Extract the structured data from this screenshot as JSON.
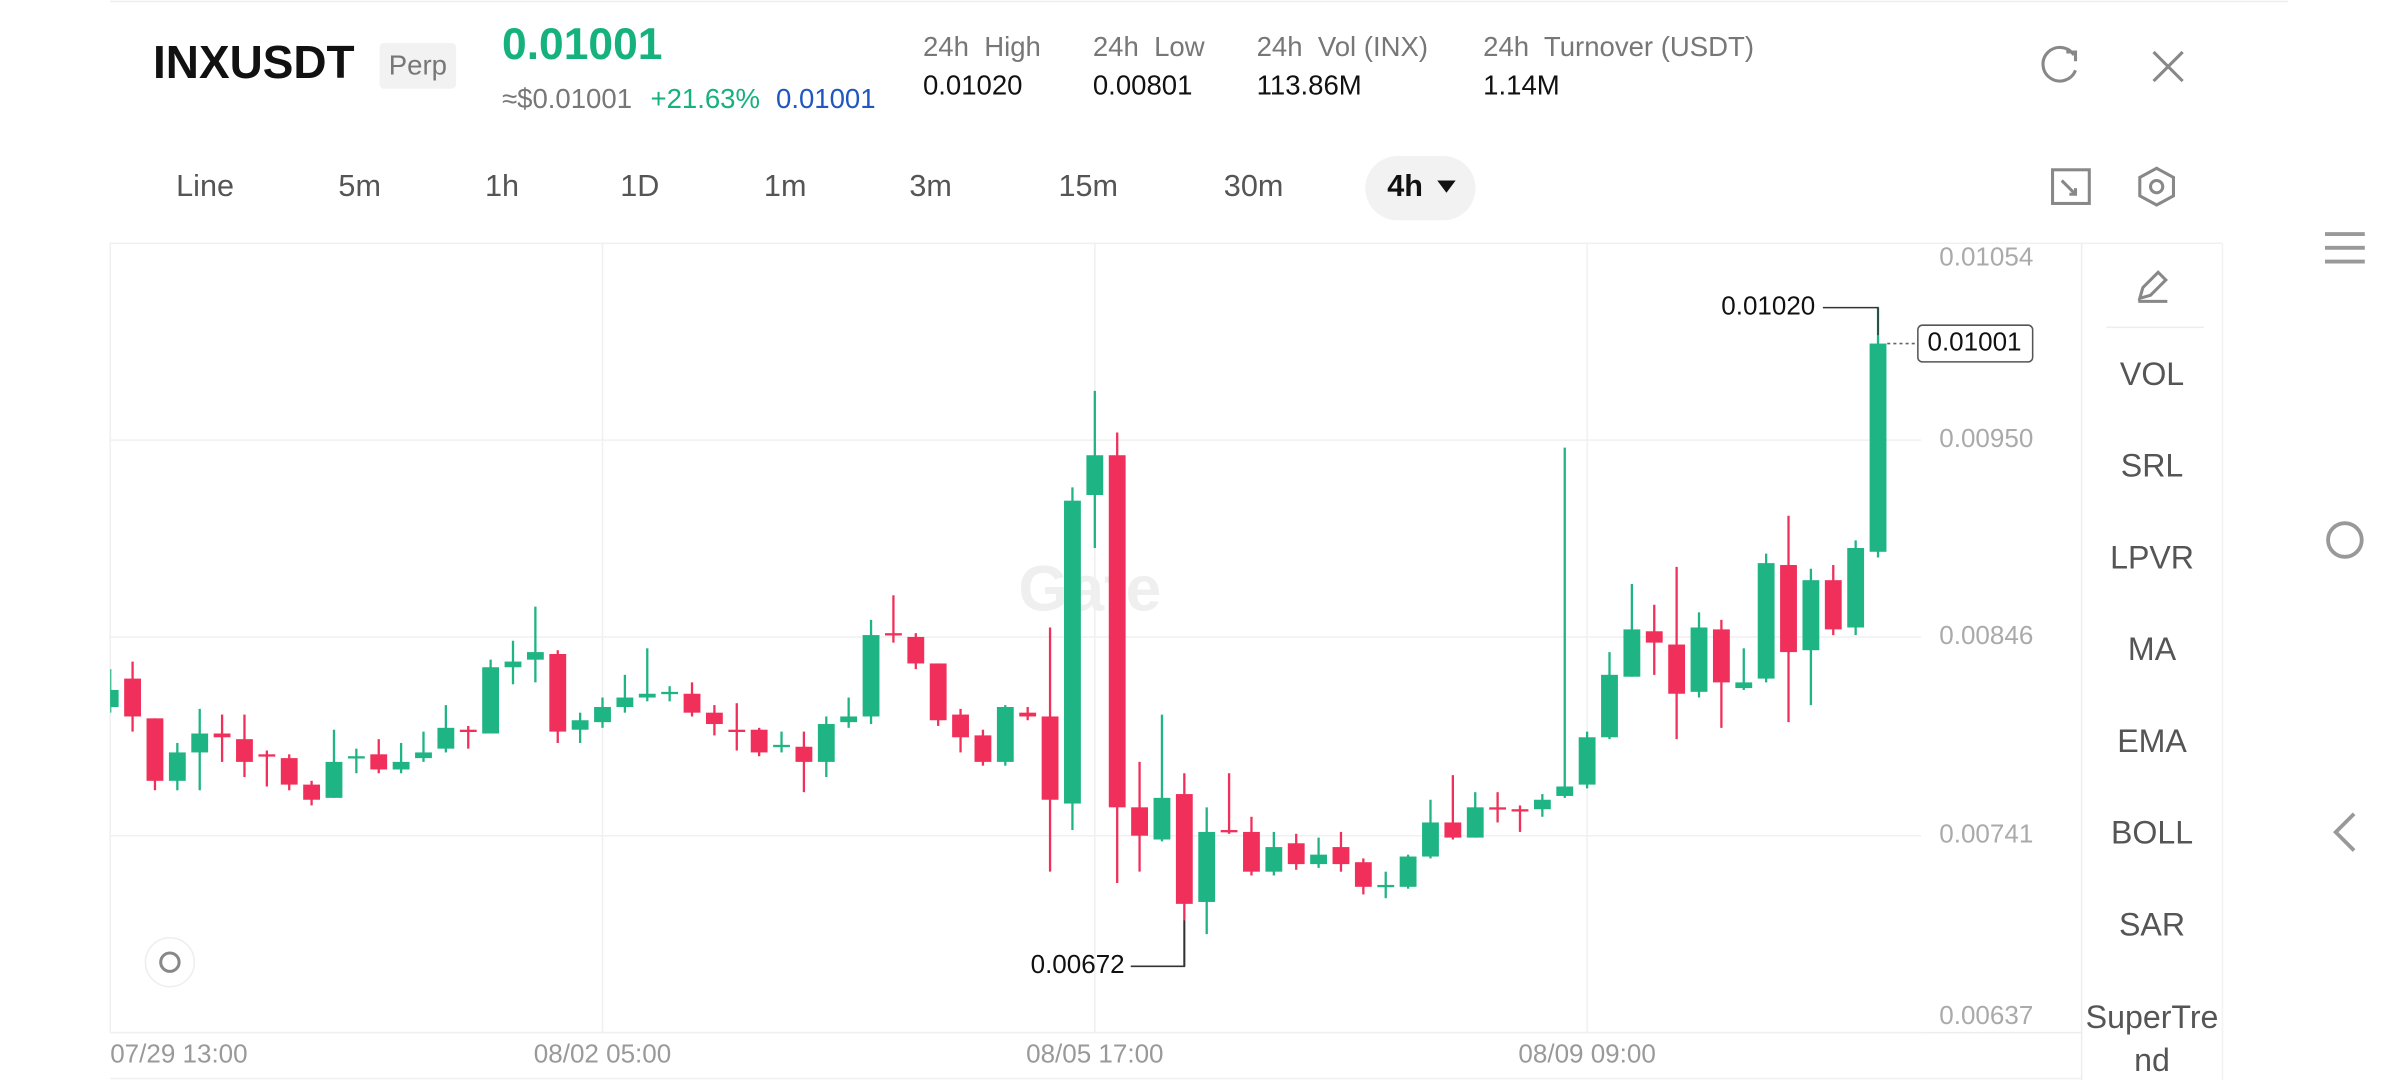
{
  "header": {
    "symbol": "INXUSDT",
    "badge": "Perp",
    "price": "0.01001",
    "usd_price": "≈$0.01001",
    "change": "+21.63%",
    "mark_price": "0.01001"
  },
  "stats": [
    {
      "label": "24h  High",
      "value": "0.01020"
    },
    {
      "label": "24h  Low",
      "value": "0.00801"
    },
    {
      "label": "24h  Vol (INX)",
      "value": "113.86M"
    },
    {
      "label": "24h  Turnover (USDT)",
      "value": "1.14M"
    }
  ],
  "intervals": [
    "Line",
    "5m",
    "1h",
    "1D",
    "1m",
    "3m",
    "15m",
    "30m",
    "4h"
  ],
  "indicators": [
    "VOL",
    "SRL",
    "LPVR",
    "MA",
    "EMA",
    "BOLL",
    "SAR",
    "SuperTrend"
  ],
  "chart_data": {
    "type": "candlestick",
    "watermark": "Gate",
    "categories": [
      "07/29 13:00",
      null,
      null,
      null,
      null,
      null,
      null,
      null,
      null,
      null,
      null,
      null,
      null,
      null,
      null,
      null,
      null,
      null,
      null,
      null,
      null,
      null,
      "08/02 05:00",
      null,
      null,
      null,
      null,
      null,
      null,
      null,
      null,
      null,
      null,
      null,
      null,
      null,
      null,
      null,
      null,
      null,
      null,
      null,
      null,
      null,
      "08/05 17:00",
      null,
      null,
      null,
      null,
      null,
      null,
      null,
      null,
      null,
      null,
      null,
      null,
      null,
      null,
      null,
      null,
      null,
      null,
      null,
      null,
      null,
      "08/09 09:00",
      null,
      null,
      null,
      null,
      null,
      null,
      null,
      null,
      null,
      null,
      null,
      null,
      null
    ],
    "open": [
      0.00809,
      0.00824,
      0.00803,
      0.0077,
      0.00785,
      0.00795,
      0.00792,
      0.00784,
      0.00782,
      0.00768,
      0.00761,
      0.00782,
      0.00784,
      0.00776,
      0.00782,
      0.00787,
      0.00797,
      0.00795,
      0.0083,
      0.00834,
      0.00837,
      0.00797,
      0.00801,
      0.00809,
      0.00814,
      0.00816,
      0.00816,
      0.00806,
      0.00797,
      0.00797,
      0.00788,
      0.00788,
      0.0078,
      0.00801,
      0.00804,
      0.00848,
      0.00846,
      0.00832,
      0.00805,
      0.00794,
      0.0078,
      0.00806,
      0.00804,
      0.00758,
      0.00921,
      0.00942,
      0.00756,
      0.00739,
      0.00763,
      0.00706,
      0.00744,
      0.00743,
      0.00722,
      0.00737,
      0.00726,
      0.00735,
      0.00727,
      0.00714,
      0.00714,
      0.0073,
      0.00748,
      0.0074,
      0.00756,
      0.00755,
      0.00755,
      0.00762,
      0.00768,
      0.00793,
      0.00825,
      0.00849,
      0.00842,
      0.00817,
      0.0085,
      0.00819,
      0.00824,
      0.00884,
      0.00839,
      0.00876,
      0.00851,
      0.00891
    ],
    "high": [
      0.00829,
      0.00833,
      0.00803,
      0.0079,
      0.00808,
      0.00805,
      0.00805,
      0.00786,
      0.00784,
      0.0077,
      0.00797,
      0.00787,
      0.00792,
      0.0079,
      0.00796,
      0.0081,
      0.00799,
      0.00834,
      0.00844,
      0.00862,
      0.00839,
      0.00806,
      0.00814,
      0.00826,
      0.0084,
      0.0082,
      0.00822,
      0.0081,
      0.00811,
      0.00798,
      0.00796,
      0.00796,
      0.00804,
      0.00814,
      0.00855,
      0.00868,
      0.00848,
      0.00832,
      0.00808,
      0.00797,
      0.0081,
      0.00809,
      0.00851,
      0.00925,
      0.00976,
      0.00954,
      0.0078,
      0.00805,
      0.00774,
      0.00756,
      0.00774,
      0.00751,
      0.00743,
      0.00742,
      0.0074,
      0.00743,
      0.00729,
      0.00722,
      0.00731,
      0.0076,
      0.00773,
      0.00764,
      0.00764,
      0.00757,
      0.00763,
      0.00946,
      0.00796,
      0.00838,
      0.00874,
      0.00863,
      0.00883,
      0.00859,
      0.00855,
      0.0084,
      0.0089,
      0.0091,
      0.00882,
      0.00884,
      0.00897,
      0.0102
    ],
    "low": [
      0.00806,
      0.00796,
      0.00765,
      0.00765,
      0.00765,
      0.0078,
      0.00772,
      0.00767,
      0.00765,
      0.00757,
      0.00761,
      0.00774,
      0.00774,
      0.00774,
      0.0078,
      0.00785,
      0.00787,
      0.00795,
      0.00821,
      0.00822,
      0.0079,
      0.0079,
      0.00798,
      0.00806,
      0.00812,
      0.00812,
      0.00804,
      0.00794,
      0.00786,
      0.00783,
      0.00785,
      0.00764,
      0.00772,
      0.00798,
      0.008,
      0.00843,
      0.00829,
      0.00799,
      0.00785,
      0.00778,
      0.00778,
      0.00802,
      0.00722,
      0.00744,
      0.00893,
      0.00716,
      0.00722,
      0.00738,
      0.00672,
      0.00689,
      0.00742,
      0.0072,
      0.0072,
      0.00723,
      0.00724,
      0.00722,
      0.0071,
      0.00708,
      0.00713,
      0.00729,
      0.00739,
      0.0074,
      0.00748,
      0.00743,
      0.00751,
      0.00761,
      0.00766,
      0.00792,
      0.00825,
      0.00826,
      0.00792,
      0.00814,
      0.00798,
      0.00818,
      0.00822,
      0.00801,
      0.0081,
      0.00847,
      0.00847,
      0.00888
    ],
    "close": [
      0.00818,
      0.00804,
      0.0077,
      0.00785,
      0.00795,
      0.00793,
      0.0078,
      0.00783,
      0.00768,
      0.0076,
      0.0078,
      0.00783,
      0.00776,
      0.0078,
      0.00785,
      0.00798,
      0.00796,
      0.0083,
      0.00833,
      0.00838,
      0.00796,
      0.00802,
      0.00809,
      0.00814,
      0.00816,
      0.00817,
      0.00806,
      0.008,
      0.00796,
      0.00785,
      0.00789,
      0.0078,
      0.008,
      0.00804,
      0.00847,
      0.00847,
      0.00832,
      0.00802,
      0.00793,
      0.0078,
      0.00809,
      0.00804,
      0.0076,
      0.00918,
      0.00942,
      0.00756,
      0.00741,
      0.00761,
      0.00705,
      0.00743,
      0.00743,
      0.00722,
      0.00735,
      0.00726,
      0.00731,
      0.00726,
      0.00714,
      0.00715,
      0.0073,
      0.00748,
      0.0074,
      0.00756,
      0.00755,
      0.00754,
      0.0076,
      0.00767,
      0.00793,
      0.00826,
      0.0085,
      0.00843,
      0.00816,
      0.00851,
      0.00822,
      0.00822,
      0.00885,
      0.00838,
      0.00876,
      0.0085,
      0.00893,
      0.01001
    ],
    "up_color": "#1fb483",
    "down_color": "#f0305a",
    "ylim": [
      0.00637,
      0.01054
    ],
    "yticks": [
      0.00637,
      0.00741,
      0.00846,
      {
        "value": 0.0095,
        "label": "0.00950"
      },
      0.01054
    ],
    "grid": true,
    "max_label": {
      "value": 0.0102,
      "label": "0.01020"
    },
    "min_label": 0.00672,
    "last_price": 0.01001
  }
}
